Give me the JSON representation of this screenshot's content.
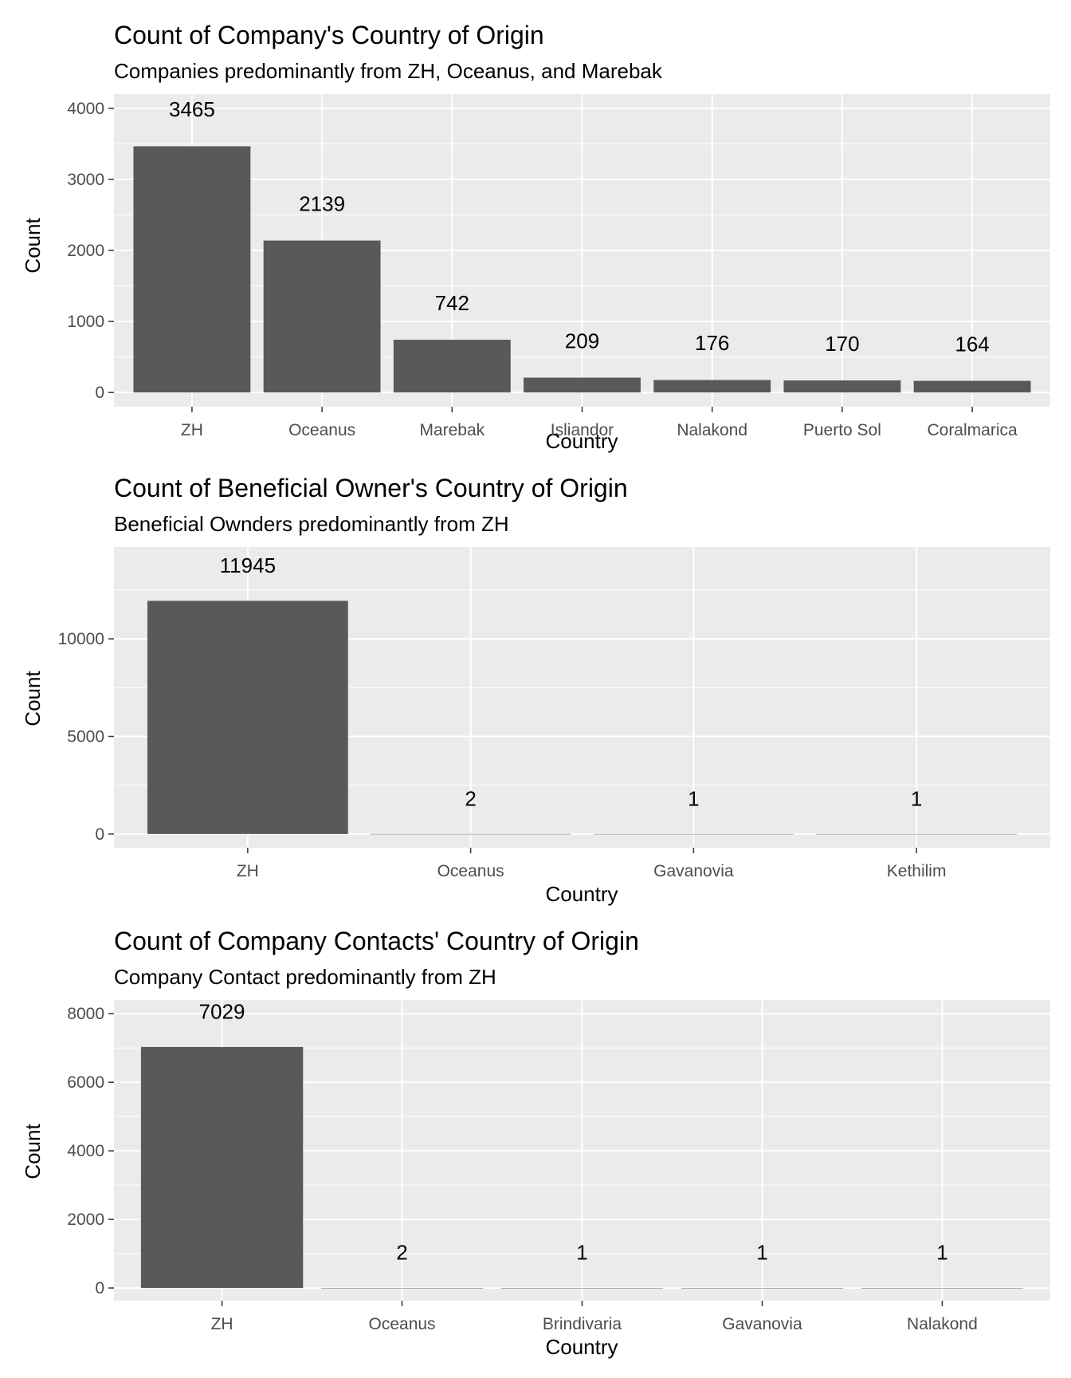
{
  "chart_data": [
    {
      "type": "bar",
      "title": "Count of Company's Country of Origin",
      "subtitle": "Companies predominantly from ZH, Oceanus, and Marebak",
      "xlabel": "Country",
      "ylabel": "Count",
      "categories": [
        "ZH",
        "Oceanus",
        "Marebak",
        "Isliandor",
        "Nalakond",
        "Puerto Sol",
        "Coralmarica"
      ],
      "values": [
        3465,
        2139,
        742,
        209,
        176,
        170,
        164
      ],
      "ylim": [
        -200,
        4200
      ],
      "yticks": [
        0,
        1000,
        2000,
        3000,
        4000
      ],
      "yminor": [
        500,
        1500,
        2500,
        3500
      ],
      "bar_color": "#595959",
      "panel_color": "#ebebeb",
      "grid_color": "#ffffff"
    },
    {
      "type": "bar",
      "title": "Count of Beneficial Owner's Country of Origin",
      "subtitle": "Beneficial Ownders predominantly from ZH",
      "xlabel": "Country",
      "ylabel": "Count",
      "categories": [
        "ZH",
        "Oceanus",
        "Gavanovia",
        "Kethilim"
      ],
      "values": [
        11945,
        2,
        1,
        1
      ],
      "ylim": [
        -700,
        14700
      ],
      "yticks": [
        0,
        5000,
        10000
      ],
      "yminor": [
        2500,
        7500,
        12500
      ],
      "bar_color": "#595959",
      "panel_color": "#ebebeb",
      "grid_color": "#ffffff"
    },
    {
      "type": "bar",
      "title": "Count of Company Contacts' Country of Origin",
      "subtitle": "Company Contact predominantly from ZH",
      "xlabel": "Country",
      "ylabel": "Count",
      "categories": [
        "ZH",
        "Oceanus",
        "Brindivaria",
        "Gavanovia",
        "Nalakond"
      ],
      "values": [
        7029,
        2,
        1,
        1,
        1
      ],
      "ylim": [
        -370,
        8400
      ],
      "yticks": [
        0,
        2000,
        4000,
        6000,
        8000
      ],
      "yminor": [
        1000,
        3000,
        5000,
        7000
      ],
      "bar_color": "#595959",
      "panel_color": "#ebebeb",
      "grid_color": "#ffffff"
    }
  ]
}
